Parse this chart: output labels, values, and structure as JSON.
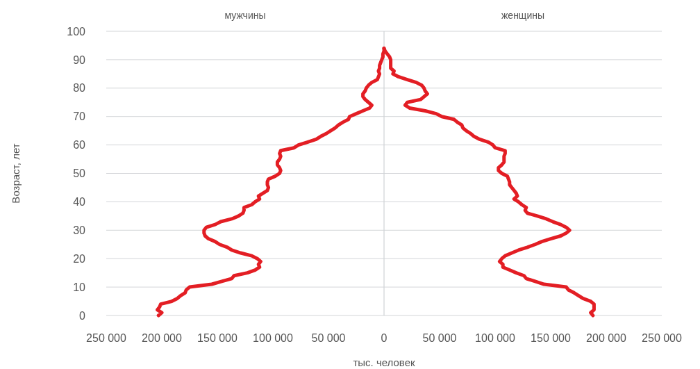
{
  "chart_data": {
    "type": "line",
    "orientation": "horizontal",
    "xlabel": "тыс. человек",
    "ylabel": "Возраст, лет",
    "x": [
      0,
      1,
      2,
      3,
      4,
      5,
      6,
      7,
      8,
      9,
      10,
      11,
      12,
      13,
      14,
      15,
      16,
      17,
      18,
      19,
      20,
      21,
      22,
      23,
      24,
      25,
      26,
      27,
      28,
      29,
      30,
      31,
      32,
      33,
      34,
      35,
      36,
      37,
      38,
      39,
      40,
      41,
      42,
      43,
      44,
      45,
      46,
      47,
      48,
      49,
      50,
      51,
      52,
      53,
      54,
      55,
      56,
      57,
      58,
      59,
      60,
      61,
      62,
      63,
      64,
      65,
      66,
      67,
      68,
      69,
      70,
      71,
      72,
      73,
      74,
      75,
      76,
      77,
      78,
      79,
      80,
      81,
      82,
      83,
      84,
      85,
      86,
      87,
      88,
      89,
      90,
      91,
      92,
      93,
      94
    ],
    "series": [
      {
        "color": "#e31e24",
        "values": [
          -203000,
          -200000,
          -204000,
          -202000,
          -201000,
          -191000,
          -186000,
          -183000,
          -179000,
          -178000,
          -175000,
          -155000,
          -146000,
          -137000,
          -135000,
          -123000,
          -116000,
          -112000,
          -113000,
          -111000,
          -114000,
          -119000,
          -129000,
          -137000,
          -141000,
          -148000,
          -152000,
          -158000,
          -161000,
          -162000,
          -162000,
          -160000,
          -152000,
          -147000,
          -137000,
          -131000,
          -127000,
          -126000,
          -126000,
          -119000,
          -116000,
          -112000,
          -113000,
          -109000,
          -105000,
          -104000,
          -105000,
          -105000,
          -104000,
          -98000,
          -94000,
          -93000,
          -94000,
          -96000,
          -96000,
          -94000,
          -93000,
          -94000,
          -93000,
          -81000,
          -77000,
          -69000,
          -61000,
          -57000,
          -52000,
          -48000,
          -44000,
          -41000,
          -37000,
          -32000,
          -31000,
          -25000,
          -19000,
          -13000,
          -11000,
          -14000,
          -17000,
          -19000,
          -19000,
          -17000,
          -16000,
          -14000,
          -11000,
          -6000,
          -5000,
          -4000,
          -5000,
          -4000,
          -4000,
          -3000,
          -2000,
          -1000,
          -1000,
          0,
          0
        ]
      },
      {
        "color": "#e31e24",
        "values": [
          188000,
          186000,
          189000,
          189000,
          189000,
          186000,
          179000,
          175000,
          171000,
          166000,
          164000,
          144000,
          136000,
          128000,
          126000,
          119000,
          113000,
          107000,
          107000,
          104000,
          106000,
          109000,
          115000,
          121000,
          129000,
          136000,
          142000,
          150000,
          159000,
          164000,
          167000,
          164000,
          159000,
          152000,
          146000,
          138000,
          129000,
          127000,
          128000,
          124000,
          121000,
          117000,
          120000,
          119000,
          117000,
          115000,
          113000,
          113000,
          112000,
          111000,
          106000,
          103000,
          103000,
          106000,
          108000,
          108000,
          108000,
          109000,
          109000,
          100000,
          98000,
          94000,
          86000,
          81000,
          78000,
          74000,
          71000,
          70000,
          66000,
          63000,
          52000,
          47000,
          37000,
          23000,
          19000,
          21000,
          33000,
          36000,
          39000,
          37000,
          36000,
          34000,
          29000,
          21000,
          13000,
          8000,
          9000,
          6000,
          6000,
          6000,
          6000,
          5000,
          3000,
          1000,
          0
        ]
      }
    ],
    "xlim": [
      -250000,
      250000
    ],
    "xticks": [
      {
        "value": -250000,
        "label": "250 000"
      },
      {
        "value": -200000,
        "label": "200 000"
      },
      {
        "value": -150000,
        "label": "150 000"
      },
      {
        "value": -100000,
        "label": "100 000"
      },
      {
        "value": -50000,
        "label": "50 000"
      },
      0,
      {
        "value": 50000,
        "label": "50 000"
      },
      {
        "value": 100000,
        "label": "100 000"
      },
      {
        "value": 150000,
        "label": "150 000"
      },
      {
        "value": 200000,
        "label": "200 000"
      },
      {
        "value": 250000,
        "label": "250 000"
      }
    ],
    "ylim": [
      0,
      100
    ],
    "yticks": [
      0,
      10,
      20,
      30,
      40,
      50,
      60,
      70,
      80,
      90,
      100
    ],
    "grid": "y",
    "ref_lines": [
      {
        "axis": "x",
        "value": 0,
        "color": "#cfd2d6"
      }
    ],
    "annotations": [
      "мужчины",
      "женщины"
    ]
  }
}
